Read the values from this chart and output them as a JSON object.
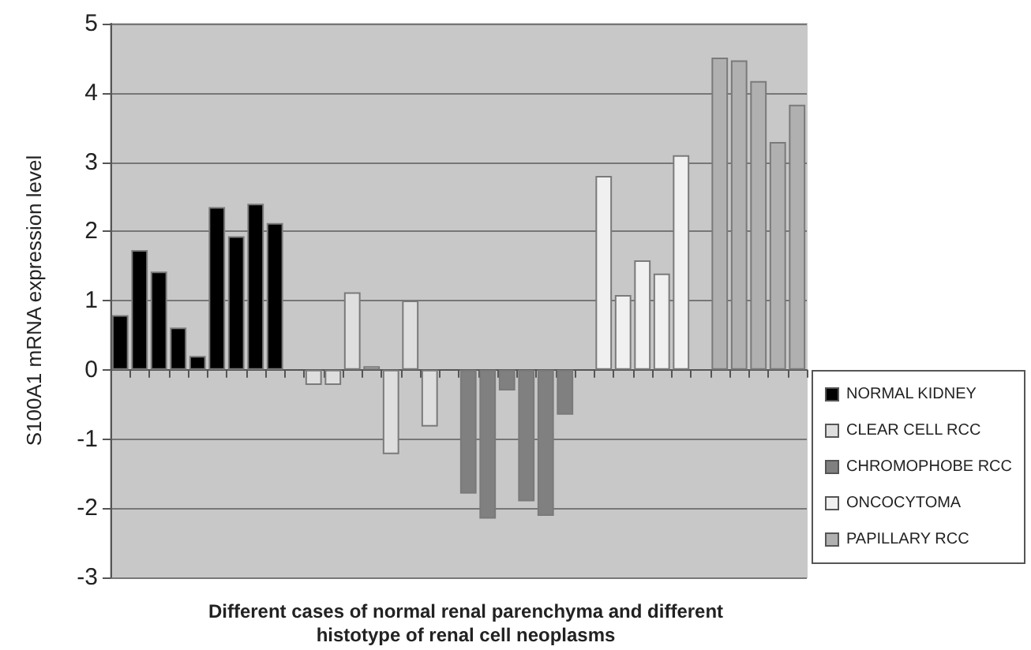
{
  "chart_data": {
    "type": "bar",
    "xlabel": "Different cases of normal renal parenchyma and different\nhistotype of renal cell neoplasms",
    "ylabel": "S100A1 mRNA expression level",
    "categories": [
      null,
      null,
      null,
      null,
      null,
      null,
      null,
      null,
      null,
      null,
      null,
      null,
      null,
      null,
      null,
      null,
      null,
      null,
      null,
      null,
      null,
      null,
      null,
      null,
      null,
      null,
      null,
      null,
      null,
      null,
      null,
      null,
      null,
      null,
      null,
      null
    ],
    "series": [
      {
        "name": "NORMAL KIDNEY",
        "color": "#000000",
        "values": [
          0.79,
          1.73,
          1.42,
          0.61,
          0.2,
          2.35,
          1.93,
          2.4,
          2.12,
          null,
          null,
          null,
          null,
          null,
          null,
          null,
          null,
          null,
          null,
          null,
          null,
          null,
          null,
          null,
          null,
          null,
          null,
          null,
          null,
          null,
          null,
          null,
          null,
          null,
          null,
          null
        ]
      },
      {
        "name": "CLEAR CELL RCC",
        "color": "#dedede",
        "values": [
          null,
          null,
          null,
          null,
          null,
          null,
          null,
          null,
          null,
          null,
          -0.22,
          -0.22,
          1.12,
          0.05,
          -1.22,
          1.0,
          -0.82,
          null,
          null,
          null,
          null,
          null,
          null,
          null,
          null,
          null,
          null,
          null,
          null,
          null,
          null,
          null,
          null,
          null,
          null,
          null
        ]
      },
      {
        "name": "CHROMOPHOBE RCC",
        "color": "#808080",
        "values": [
          null,
          null,
          null,
          null,
          null,
          null,
          null,
          null,
          null,
          null,
          null,
          null,
          null,
          null,
          null,
          null,
          null,
          null,
          -1.79,
          -2.15,
          -0.3,
          -1.9,
          -2.11,
          -0.65,
          null,
          null,
          null,
          null,
          null,
          null,
          null,
          null,
          null,
          null,
          null,
          null
        ]
      },
      {
        "name": "ONCOCYTOMA",
        "color": "#f0f0f0",
        "values": [
          null,
          null,
          null,
          null,
          null,
          null,
          null,
          null,
          null,
          null,
          null,
          null,
          null,
          null,
          null,
          null,
          null,
          null,
          null,
          null,
          null,
          null,
          null,
          null,
          null,
          2.8,
          1.08,
          1.58,
          1.39,
          3.1,
          null,
          null,
          null,
          null,
          null,
          null
        ]
      },
      {
        "name": "PAPILLARY RCC",
        "color": "#b0b0b0",
        "values": [
          null,
          null,
          null,
          null,
          null,
          null,
          null,
          null,
          null,
          null,
          null,
          null,
          null,
          null,
          null,
          null,
          null,
          null,
          null,
          null,
          null,
          null,
          null,
          null,
          null,
          null,
          null,
          null,
          null,
          null,
          null,
          4.51,
          4.47,
          4.17,
          3.29,
          3.83
        ]
      }
    ],
    "ylim": [
      -3,
      5
    ],
    "yticks": [
      -3,
      -2,
      -1,
      0,
      1,
      2,
      3,
      4,
      5
    ],
    "grid": "y",
    "legend": "right",
    "tick_labels": "y"
  }
}
